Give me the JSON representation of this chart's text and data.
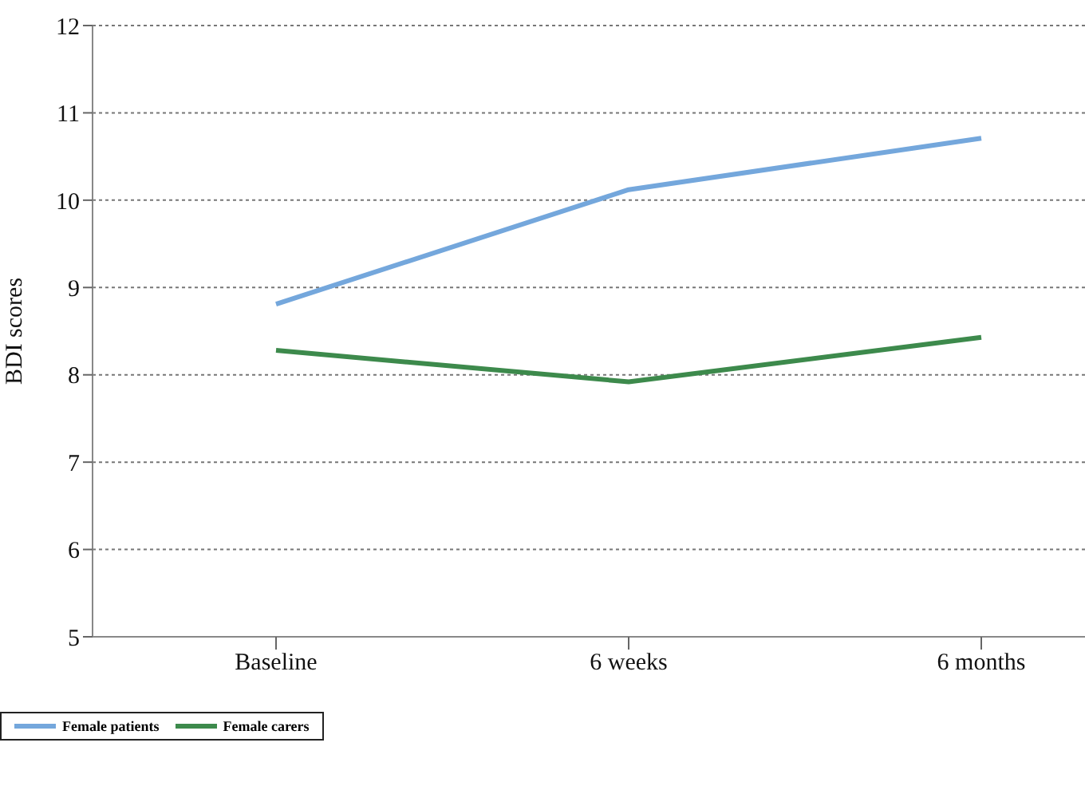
{
  "chart_data": {
    "type": "line",
    "ylabel": "BDI scores",
    "categories": [
      "Baseline",
      "6 weeks",
      "6 months"
    ],
    "series": [
      {
        "name": "Female patients",
        "color": "#74a7dc",
        "values": [
          8.81,
          10.12,
          10.71
        ]
      },
      {
        "name": "Female carers",
        "color": "#3d8a4c",
        "values": [
          8.28,
          7.92,
          8.43
        ]
      }
    ],
    "ylim": [
      5,
      12
    ],
    "yticks": [
      5,
      6,
      7,
      8,
      9,
      10,
      11,
      12
    ],
    "grid": "y",
    "legend": "bottom",
    "marker": "none",
    "line_style": "solid"
  }
}
